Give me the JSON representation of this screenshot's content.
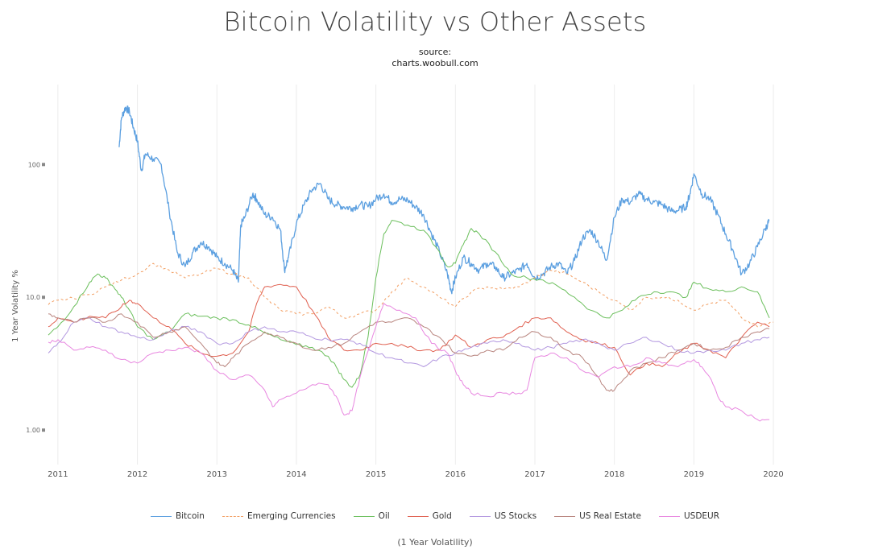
{
  "title": "Bitcoin Volatility vs Other Assets",
  "source_label": "source:",
  "source_url": "charts.woobull.com",
  "chart_data": {
    "type": "line",
    "title": "Bitcoin Volatility vs Other Assets",
    "ylabel": "1 Year Volatility %",
    "xlabel": "(1 Year Volatility)",
    "y_scale": "log",
    "ylim": [
      0.55,
      400
    ],
    "xlim": [
      2010.9,
      2020.05
    ],
    "y_ticks": [
      {
        "value": 1,
        "label": "1.00"
      },
      {
        "value": 10,
        "label": "10.0"
      },
      {
        "value": 100,
        "label": "100"
      }
    ],
    "x_ticks": [
      {
        "value": 2011,
        "label": "2011"
      },
      {
        "value": 2012,
        "label": "2012"
      },
      {
        "value": 2013,
        "label": "2013"
      },
      {
        "value": 2014,
        "label": "2014"
      },
      {
        "value": 2015,
        "label": "2015"
      },
      {
        "value": 2016,
        "label": "2016"
      },
      {
        "value": 2017,
        "label": "2017"
      },
      {
        "value": 2018,
        "label": "2018"
      },
      {
        "value": 2019,
        "label": "2019"
      },
      {
        "value": 2020,
        "label": "2020"
      }
    ],
    "grid": "vertical",
    "legend_position": "bottom",
    "series": [
      {
        "name": "Bitcoin",
        "color": "#5b9fe0",
        "dash": "",
        "x": [
          2011.77,
          2011.8,
          2011.85,
          2011.9,
          2011.95,
          2012.0,
          2012.05,
          2012.1,
          2012.2,
          2012.3,
          2012.4,
          2012.5,
          2012.6,
          2012.7,
          2012.8,
          2012.9,
          2013.0,
          2013.1,
          2013.2,
          2013.27,
          2013.3,
          2013.35,
          2013.45,
          2013.5,
          2013.6,
          2013.7,
          2013.8,
          2013.85,
          2013.9,
          2014.0,
          2014.1,
          2014.2,
          2014.3,
          2014.4,
          2014.5,
          2014.6,
          2014.7,
          2014.8,
          2014.9,
          2015.0,
          2015.1,
          2015.2,
          2015.3,
          2015.4,
          2015.5,
          2015.6,
          2015.7,
          2015.8,
          2015.9,
          2015.95,
          2016.0,
          2016.1,
          2016.2,
          2016.3,
          2016.4,
          2016.5,
          2016.6,
          2016.7,
          2016.8,
          2016.9,
          2017.0,
          2017.1,
          2017.2,
          2017.3,
          2017.4,
          2017.5,
          2017.6,
          2017.7,
          2017.8,
          2017.9,
          2018.0,
          2018.1,
          2018.2,
          2018.3,
          2018.4,
          2018.5,
          2018.6,
          2018.7,
          2018.8,
          2018.9,
          2018.95,
          2019.0,
          2019.1,
          2019.2,
          2019.3,
          2019.4,
          2019.5,
          2019.6,
          2019.7,
          2019.8,
          2019.9,
          2019.95
        ],
        "y": [
          135,
          225,
          270,
          250,
          190,
          150,
          90,
          120,
          110,
          100,
          45,
          22,
          17,
          22,
          26,
          24,
          20,
          18,
          16,
          13,
          35,
          40,
          60,
          55,
          42,
          40,
          32,
          16,
          20,
          36,
          50,
          65,
          72,
          55,
          50,
          48,
          47,
          50,
          48,
          55,
          60,
          52,
          55,
          54,
          48,
          42,
          30,
          22,
          15,
          11,
          14,
          20,
          18,
          16,
          18,
          17,
          14,
          15,
          16,
          18,
          14,
          15,
          17,
          18,
          15,
          19,
          28,
          32,
          26,
          19,
          40,
          55,
          52,
          60,
          55,
          52,
          50,
          45,
          45,
          48,
          60,
          85,
          60,
          55,
          42,
          30,
          22,
          15,
          18,
          24,
          33,
          38
        ]
      },
      {
        "name": "Emerging Currencies",
        "color": "#f29d60",
        "dash": "3,3",
        "x": [
          2010.88,
          2011.0,
          2011.2,
          2011.4,
          2011.6,
          2011.8,
          2012.0,
          2012.2,
          2012.4,
          2012.6,
          2012.8,
          2013.0,
          2013.2,
          2013.4,
          2013.6,
          2013.8,
          2014.0,
          2014.2,
          2014.4,
          2014.6,
          2014.8,
          2015.0,
          2015.2,
          2015.4,
          2015.6,
          2015.8,
          2016.0,
          2016.2,
          2016.4,
          2016.6,
          2016.8,
          2017.0,
          2017.2,
          2017.4,
          2017.6,
          2017.8,
          2018.0,
          2018.2,
          2018.4,
          2018.6,
          2018.8,
          2019.0,
          2019.2,
          2019.4,
          2019.6,
          2019.8,
          2020.0
        ],
        "y": [
          8.8,
          9.5,
          9.8,
          10.5,
          12,
          13.5,
          15,
          18,
          16,
          14,
          15,
          16.5,
          15,
          14,
          10,
          8,
          7.5,
          7.5,
          8.5,
          7,
          7.5,
          8,
          11,
          14,
          12,
          10,
          8.5,
          11,
          12,
          11.5,
          12,
          14,
          16,
          15,
          13,
          11,
          9.5,
          8,
          10,
          10,
          9.5,
          8,
          9,
          9.5,
          7,
          6,
          6.5
        ]
      },
      {
        "name": "Oil",
        "color": "#6bbf5c",
        "dash": "",
        "x": [
          2010.88,
          2011.0,
          2011.2,
          2011.4,
          2011.5,
          2011.6,
          2011.7,
          2011.8,
          2011.9,
          2012.0,
          2012.2,
          2012.4,
          2012.6,
          2012.8,
          2013.0,
          2013.2,
          2013.4,
          2013.6,
          2013.8,
          2014.0,
          2014.2,
          2014.4,
          2014.5,
          2014.6,
          2014.7,
          2014.8,
          2014.9,
          2015.0,
          2015.1,
          2015.2,
          2015.4,
          2015.6,
          2015.8,
          2015.9,
          2016.0,
          2016.1,
          2016.2,
          2016.3,
          2016.5,
          2016.7,
          2016.9,
          2017.1,
          2017.3,
          2017.5,
          2017.7,
          2017.9,
          2018.1,
          2018.3,
          2018.5,
          2018.7,
          2018.9,
          2019.0,
          2019.2,
          2019.4,
          2019.6,
          2019.8,
          2019.95
        ],
        "y": [
          5.2,
          6.0,
          8.5,
          13,
          15,
          14,
          12,
          10,
          8,
          6,
          4.8,
          5.5,
          7.5,
          7.2,
          7,
          6.8,
          6.2,
          5.4,
          4.8,
          4.4,
          4.2,
          3.6,
          3.0,
          2.4,
          2.1,
          2.6,
          5.0,
          14,
          30,
          38,
          35,
          32,
          22,
          17,
          18,
          25,
          33,
          30,
          22,
          15,
          14,
          13.5,
          12,
          10,
          8,
          7,
          8,
          10,
          11,
          11,
          10,
          13,
          11.5,
          11,
          12,
          11,
          7
        ]
      },
      {
        "name": "Gold",
        "color": "#e06050",
        "dash": "",
        "x": [
          2010.88,
          2011.0,
          2011.2,
          2011.4,
          2011.6,
          2011.8,
          2011.9,
          2012.0,
          2012.2,
          2012.4,
          2012.6,
          2012.8,
          2013.0,
          2013.2,
          2013.4,
          2013.5,
          2013.6,
          2013.8,
          2014.0,
          2014.2,
          2014.4,
          2014.6,
          2014.8,
          2015.0,
          2015.2,
          2015.4,
          2015.6,
          2015.8,
          2016.0,
          2016.2,
          2016.4,
          2016.6,
          2016.8,
          2017.0,
          2017.2,
          2017.4,
          2017.6,
          2017.8,
          2018.0,
          2018.2,
          2018.4,
          2018.6,
          2018.8,
          2019.0,
          2019.2,
          2019.4,
          2019.6,
          2019.8,
          2019.95
        ],
        "y": [
          6.0,
          7.0,
          6.5,
          7.2,
          7.0,
          8.5,
          9.5,
          9.0,
          7.0,
          6.0,
          4.5,
          3.8,
          3.6,
          3.8,
          5.5,
          9.0,
          12.0,
          12.5,
          12.0,
          8.0,
          5.0,
          4.0,
          4.0,
          4.5,
          4.5,
          4.2,
          4.0,
          4.0,
          5.2,
          4.2,
          4.8,
          5.0,
          6.0,
          7.0,
          7.0,
          5.5,
          4.8,
          4.5,
          4.2,
          2.6,
          3.2,
          3.0,
          3.8,
          4.5,
          4.0,
          3.5,
          5.0,
          6.5,
          6.0
        ]
      },
      {
        "name": "US Stocks",
        "color": "#b398e0",
        "dash": "",
        "x": [
          2010.88,
          2011.0,
          2011.2,
          2011.4,
          2011.6,
          2011.8,
          2012.0,
          2012.2,
          2012.4,
          2012.6,
          2012.8,
          2013.0,
          2013.2,
          2013.4,
          2013.6,
          2013.8,
          2014.0,
          2014.2,
          2014.4,
          2014.6,
          2014.8,
          2015.0,
          2015.2,
          2015.4,
          2015.6,
          2015.8,
          2016.0,
          2016.2,
          2016.4,
          2016.6,
          2016.8,
          2017.0,
          2017.2,
          2017.4,
          2017.6,
          2017.8,
          2018.0,
          2018.2,
          2018.4,
          2018.6,
          2018.8,
          2019.0,
          2019.2,
          2019.4,
          2019.6,
          2019.8,
          2019.95
        ],
        "y": [
          3.8,
          4.5,
          6.5,
          7.0,
          6.0,
          5.5,
          5.0,
          4.8,
          5.5,
          6.0,
          5.5,
          4.5,
          4.5,
          5.5,
          6.0,
          5.5,
          5.5,
          5.0,
          4.8,
          4.8,
          4.5,
          3.8,
          3.5,
          3.2,
          3.0,
          3.5,
          3.8,
          4.2,
          4.5,
          4.8,
          4.5,
          4.0,
          4.2,
          4.5,
          4.8,
          4.5,
          4.0,
          4.5,
          5.0,
          4.5,
          4.0,
          3.8,
          4.0,
          4.0,
          4.5,
          4.8,
          5.0
        ]
      },
      {
        "name": "US Real Estate",
        "color": "#b8847e",
        "dash": "",
        "x": [
          2010.88,
          2011.0,
          2011.2,
          2011.4,
          2011.6,
          2011.8,
          2012.0,
          2012.2,
          2012.4,
          2012.6,
          2012.8,
          2013.0,
          2013.1,
          2013.2,
          2013.4,
          2013.6,
          2013.8,
          2014.0,
          2014.2,
          2014.4,
          2014.6,
          2014.8,
          2015.0,
          2015.2,
          2015.4,
          2015.6,
          2015.8,
          2016.0,
          2016.2,
          2016.4,
          2016.6,
          2016.8,
          2017.0,
          2017.2,
          2017.4,
          2017.6,
          2017.8,
          2017.9,
          2018.0,
          2018.2,
          2018.4,
          2018.6,
          2018.8,
          2019.0,
          2019.2,
          2019.4,
          2019.6,
          2019.8,
          2019.95
        ],
        "y": [
          7.5,
          7.0,
          6.5,
          7.0,
          6.5,
          7.5,
          6.5,
          5.0,
          5.5,
          6.0,
          4.5,
          3.2,
          3.0,
          3.5,
          4.5,
          5.5,
          5.0,
          4.5,
          4.0,
          4.2,
          4.5,
          5.5,
          6.5,
          6.5,
          7.0,
          6.0,
          5.0,
          3.8,
          3.6,
          4.0,
          4.0,
          5.0,
          5.5,
          5.0,
          4.0,
          3.5,
          2.5,
          2.0,
          2.0,
          2.8,
          3.2,
          3.5,
          4.0,
          4.5,
          4.0,
          4.2,
          5.0,
          5.5,
          5.8
        ]
      },
      {
        "name": "USDEUR",
        "color": "#e887e0",
        "dash": "",
        "x": [
          2010.88,
          2011.0,
          2011.2,
          2011.4,
          2011.6,
          2011.8,
          2012.0,
          2012.2,
          2012.4,
          2012.6,
          2012.8,
          2013.0,
          2013.2,
          2013.4,
          2013.6,
          2013.7,
          2013.8,
          2014.0,
          2014.2,
          2014.4,
          2014.5,
          2014.6,
          2014.7,
          2014.8,
          2015.0,
          2015.1,
          2015.3,
          2015.5,
          2015.7,
          2015.9,
          2016.0,
          2016.1,
          2016.2,
          2016.4,
          2016.6,
          2016.8,
          2016.9,
          2017.0,
          2017.2,
          2017.4,
          2017.6,
          2017.8,
          2018.0,
          2018.2,
          2018.4,
          2018.6,
          2018.8,
          2019.0,
          2019.1,
          2019.2,
          2019.3,
          2019.4,
          2019.6,
          2019.8,
          2019.95
        ],
        "y": [
          4.6,
          4.8,
          4.0,
          4.2,
          4.0,
          3.4,
          3.2,
          3.8,
          4.0,
          4.2,
          3.8,
          2.8,
          2.4,
          2.6,
          2.0,
          1.5,
          1.7,
          1.9,
          2.2,
          2.2,
          1.8,
          1.3,
          1.4,
          2.5,
          6.0,
          9.0,
          8.0,
          7.0,
          4.5,
          3.8,
          2.8,
          2.2,
          1.9,
          1.8,
          1.9,
          1.9,
          2.0,
          3.5,
          3.8,
          3.5,
          2.8,
          2.5,
          3.0,
          3.0,
          3.5,
          3.2,
          3.0,
          3.4,
          3.0,
          2.5,
          1.8,
          1.5,
          1.4,
          1.2,
          1.2
        ]
      }
    ]
  }
}
